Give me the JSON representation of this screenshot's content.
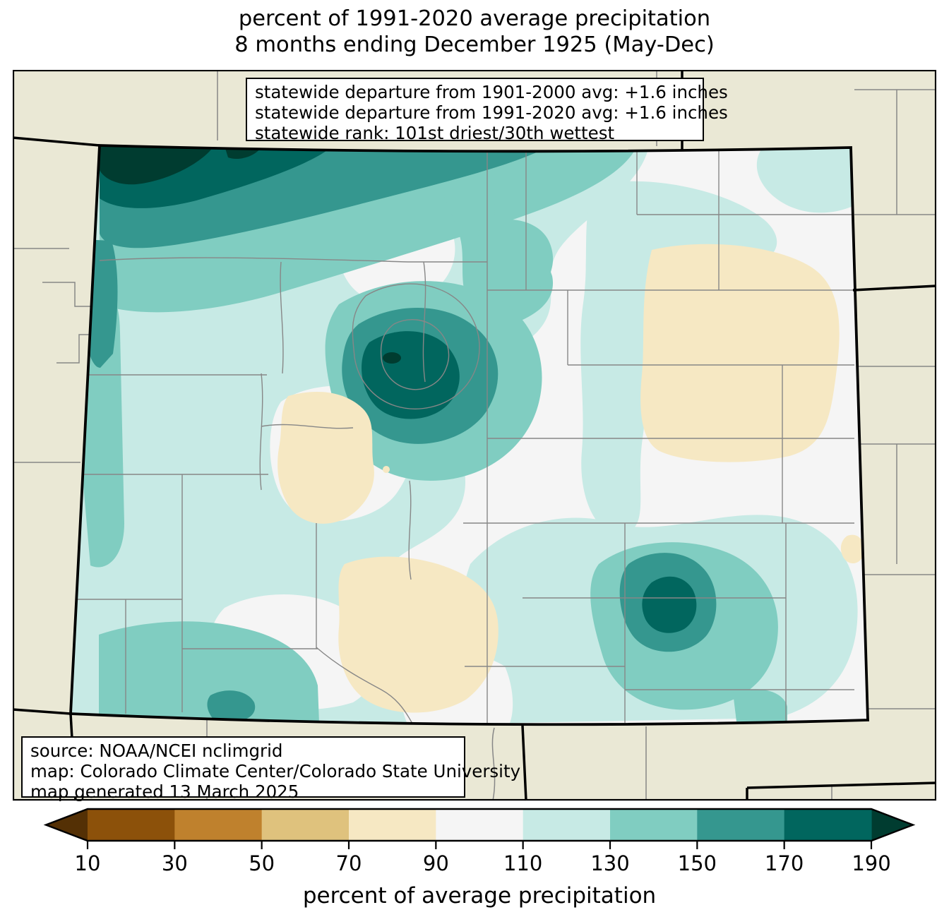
{
  "title": {
    "line1": "percent of 1991-2020 average precipitation",
    "line2": "8 months ending December 1925 (May-Dec)"
  },
  "stats_box": {
    "lines": [
      "statewide departure from 1901-2000 avg: +1.6 inches",
      "statewide departure from 1991-2020 avg: +1.6 inches",
      "statewide rank: 101st driest/30th wettest"
    ]
  },
  "source_box": {
    "lines": [
      "source: NOAA/NCEI nclimgrid",
      "map: Colorado Climate Center/Colorado State University",
      "map generated 13 March 2025"
    ]
  },
  "colorbar": {
    "axis_label": "percent of average precipitation",
    "ticks": [
      "10",
      "30",
      "50",
      "70",
      "90",
      "110",
      "130",
      "150",
      "170",
      "190"
    ],
    "segment_colors": [
      "#8c510a",
      "#bf812d",
      "#dfc27d",
      "#f6e8c3",
      "#f5f5f5",
      "#c7eae5",
      "#80cdc1",
      "#35978f",
      "#01665e"
    ],
    "under_arrow_color": "#543005",
    "over_arrow_color": "#003c30"
  },
  "map": {
    "region": "Colorado",
    "outside_fill": "#eae8d5",
    "state_border_color": "#000000",
    "county_line_color": "#878787",
    "palette": {
      "under_10": "#543005",
      "10_30": "#8c510a",
      "30_50": "#bf812d",
      "50_70": "#dfc27d",
      "70_90": "#f6e8c3",
      "90_110": "#f5f5f5",
      "110_130": "#c7eae5",
      "130_150": "#80cdc1",
      "150_170": "#35978f",
      "170_190": "#01665e",
      "over_190": "#003c30"
    }
  }
}
